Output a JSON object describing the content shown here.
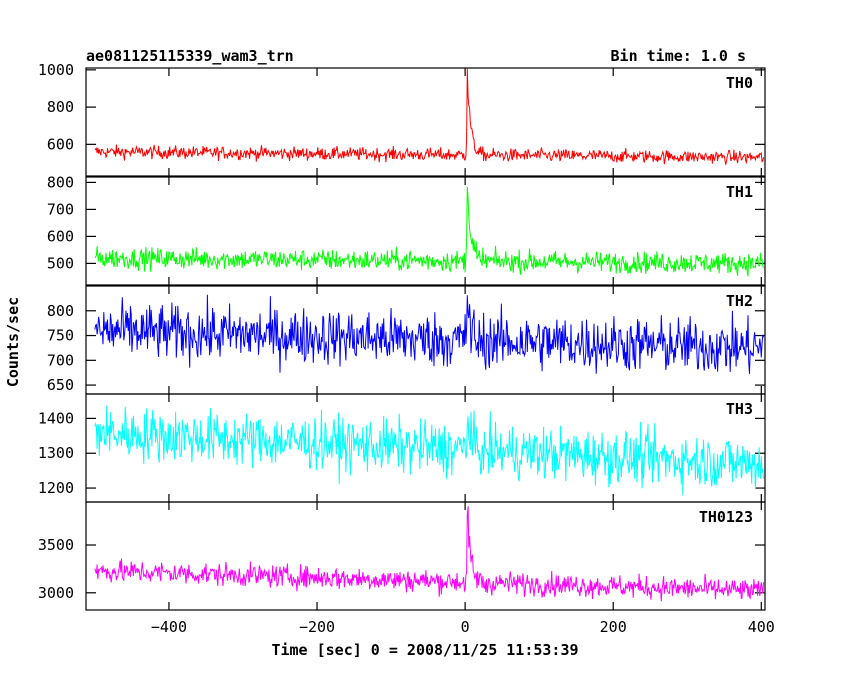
{
  "header": {
    "left_title": "ae081125115339_wam3_trn",
    "right_title": "Bin time: 1.0 s"
  },
  "chart_data": {
    "type": "line",
    "xlabel": "Time [sec] 0 = 2008/11/25 11:53:39",
    "ylabel": "Counts/sec",
    "xlim": [
      -512,
      405
    ],
    "x_ticks": [
      -400,
      -200,
      0,
      200,
      400
    ],
    "x_tick_labels": [
      "−400",
      "−200",
      "0",
      "200",
      "400"
    ],
    "series": [
      {
        "name": "TH0",
        "color": "#ff0000",
        "ylim": [
          430,
          1010
        ],
        "y_ticks": [
          600,
          800,
          1000
        ],
        "y_tick_labels": [
          "600",
          "800",
          "1000"
        ],
        "baseline_start": 560,
        "baseline_end": 530,
        "noise": 25,
        "peak_time": 3,
        "peak_value": 1010
      },
      {
        "name": "TH1",
        "color": "#00ff00",
        "ylim": [
          420,
          820
        ],
        "y_ticks": [
          500,
          600,
          700,
          800
        ],
        "y_tick_labels": [
          "500",
          "600",
          "700",
          "800"
        ],
        "baseline_start": 520,
        "baseline_end": 500,
        "noise": 28,
        "peak_time": 3,
        "peak_value": 820
      },
      {
        "name": "TH2",
        "color": "#0000ff",
        "ylim": [
          632,
          850
        ],
        "y_ticks": [
          650,
          700,
          750,
          800
        ],
        "y_tick_labels": [
          "650",
          "700",
          "750",
          "800"
        ],
        "baseline_start": 760,
        "baseline_end": 725,
        "noise": 40,
        "peak_time": 3,
        "peak_value": 845
      },
      {
        "name": "TH3",
        "color": "#00ffff",
        "ylim": [
          1160,
          1470
        ],
        "y_ticks": [
          1200,
          1300,
          1400
        ],
        "y_tick_labels": [
          "1200",
          "1300",
          "1400"
        ],
        "baseline_start": 1360,
        "baseline_end": 1270,
        "noise": 55,
        "peak_time": 3,
        "peak_value": 1430
      },
      {
        "name": "TH0123",
        "color": "#ff00ff",
        "ylim": [
          2820,
          3950
        ],
        "y_ticks": [
          3000,
          3500
        ],
        "y_tick_labels": [
          "3000",
          "3500"
        ],
        "baseline_start": 3230,
        "baseline_end": 3020,
        "noise": 85,
        "peak_time": 3,
        "peak_value": 3950
      }
    ]
  }
}
